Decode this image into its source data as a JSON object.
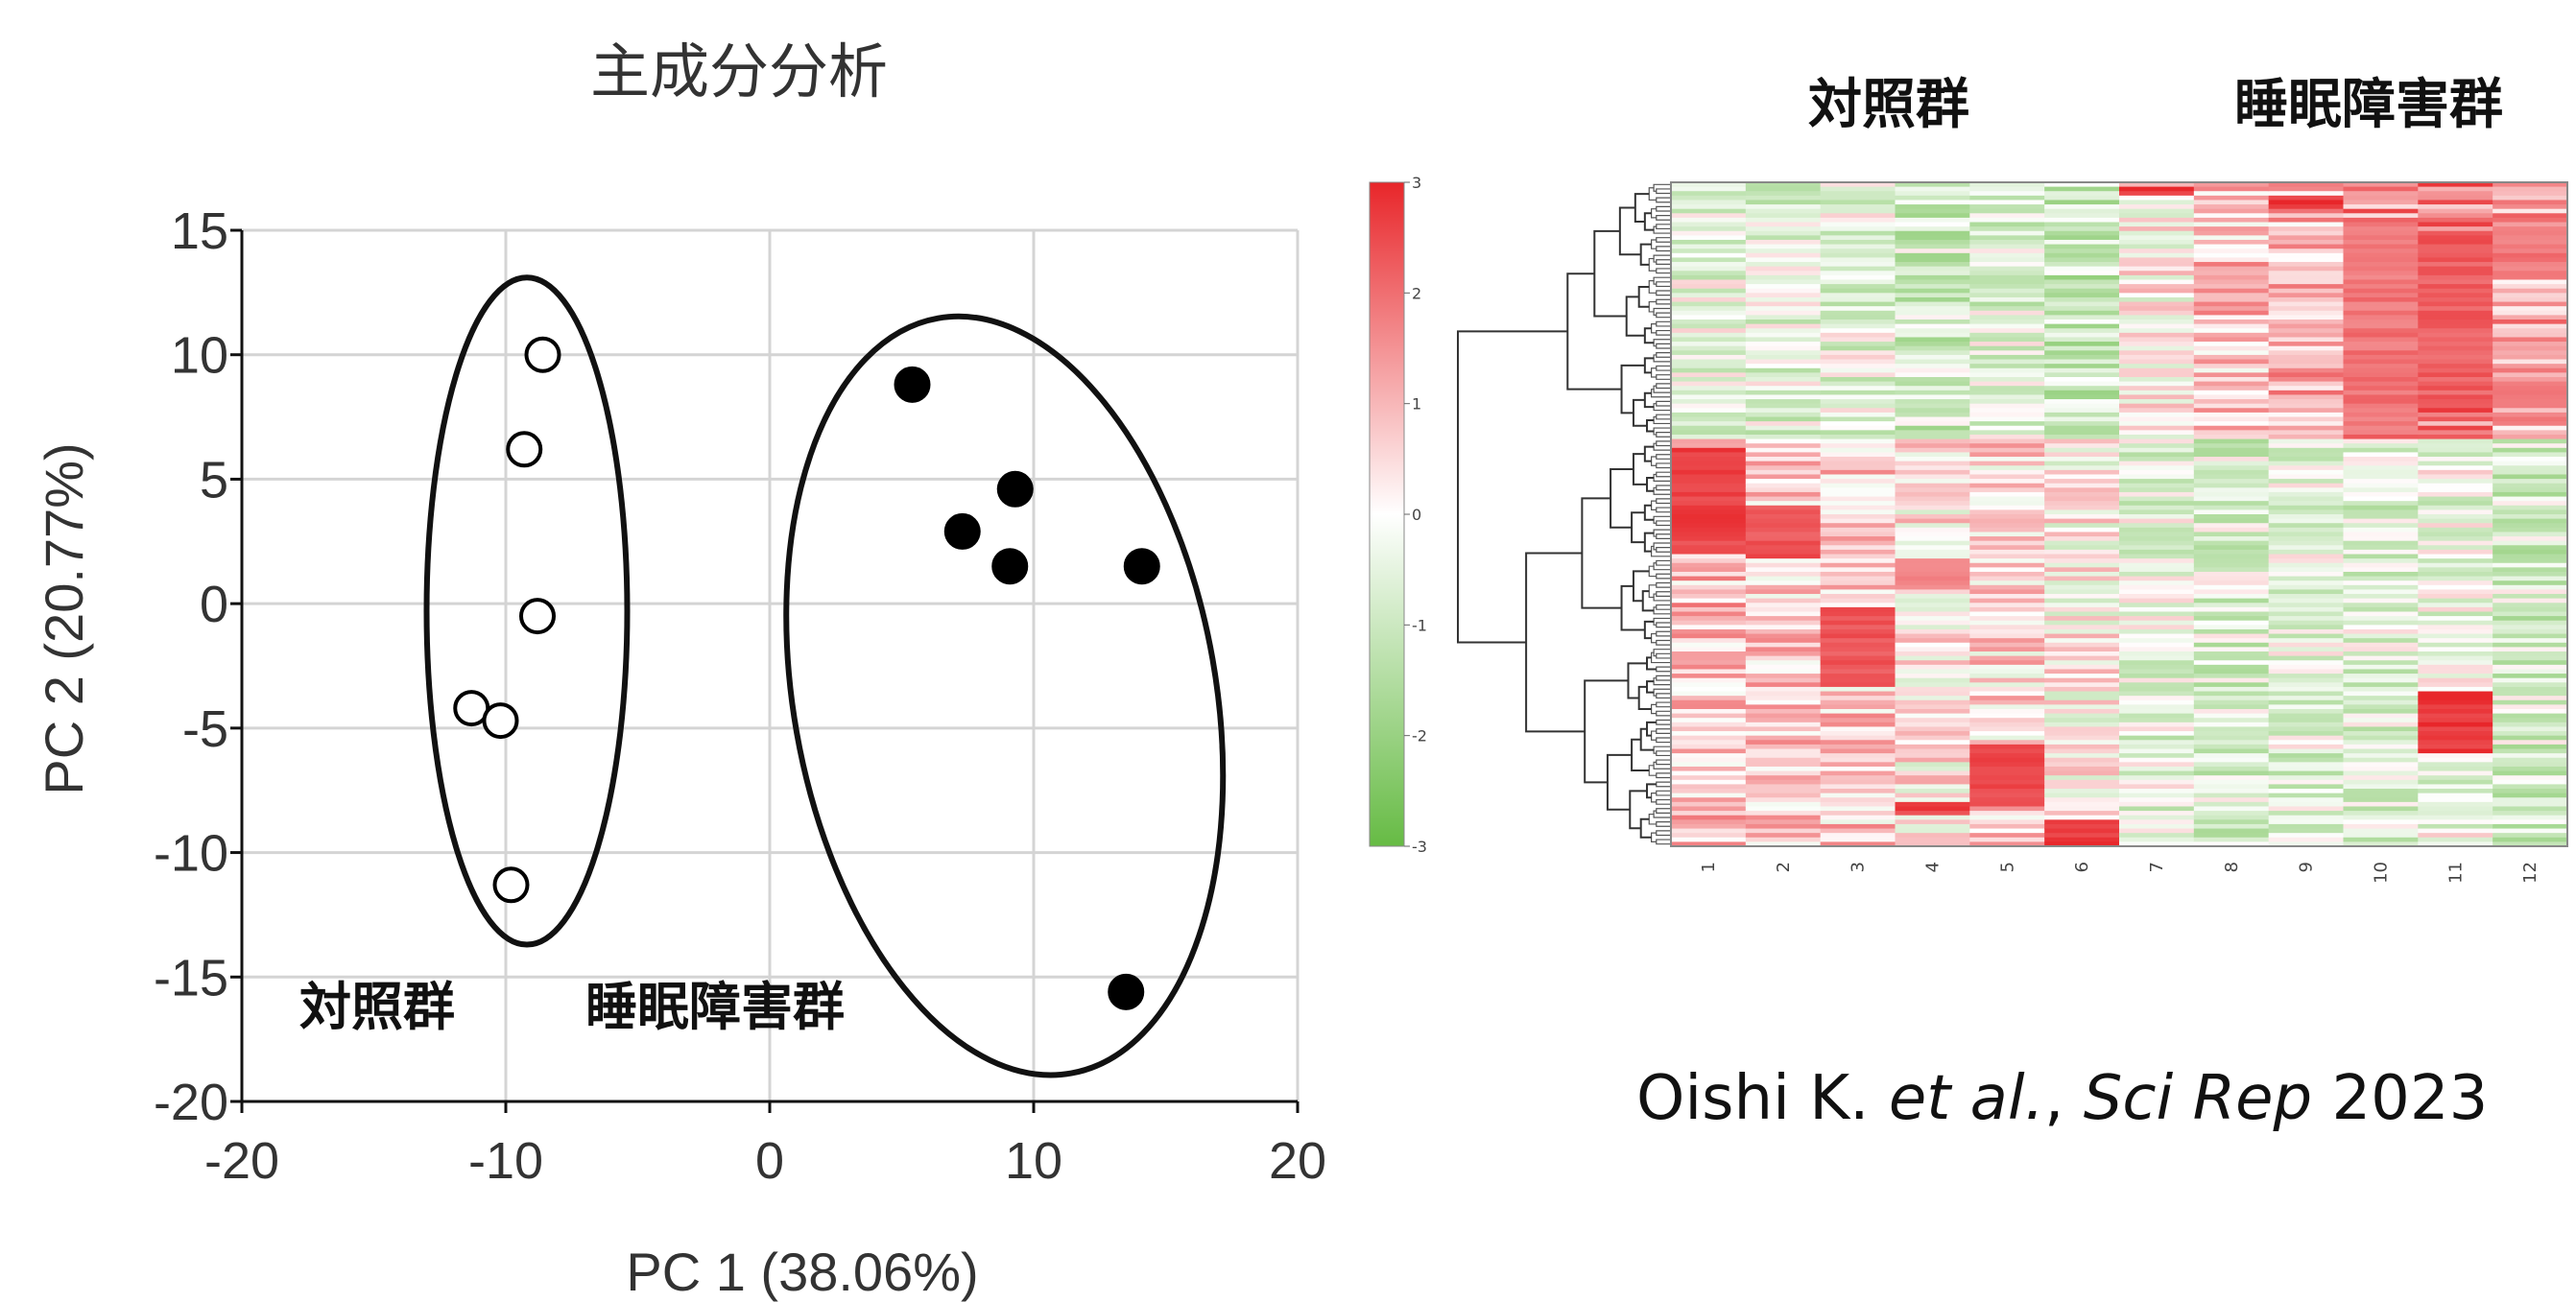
{
  "chart_data": [
    {
      "type": "scatter",
      "title": "主成分分析",
      "xlabel": "PC 1 (38.06%)",
      "ylabel": "PC 2 (20.77%)",
      "xlim": [
        -20,
        20
      ],
      "ylim": [
        -20,
        15
      ],
      "xticks": [
        -20,
        -10,
        0,
        10,
        20
      ],
      "yticks": [
        15,
        10,
        5,
        0,
        -5,
        -10,
        -15,
        -20
      ],
      "grid": true,
      "series": [
        {
          "name": "対照群",
          "marker": "open-circle",
          "points": [
            [
              -8.6,
              10.0
            ],
            [
              -9.3,
              6.2
            ],
            [
              -8.8,
              -0.5
            ],
            [
              -11.3,
              -4.2
            ],
            [
              -10.2,
              -4.7
            ],
            [
              -9.8,
              -11.3
            ]
          ]
        },
        {
          "name": "睡眠障害群",
          "marker": "filled-circle",
          "points": [
            [
              5.4,
              8.8
            ],
            [
              9.3,
              4.6
            ],
            [
              7.3,
              2.9
            ],
            [
              9.1,
              1.5
            ],
            [
              14.1,
              1.5
            ],
            [
              13.5,
              -15.6
            ]
          ]
        }
      ],
      "ellipses": [
        {
          "group": "対照群",
          "cx": -9.2,
          "cy": -0.3,
          "rx": 3.8,
          "ry": 13.4,
          "rotation_deg": 0
        },
        {
          "group": "睡眠障害群",
          "cx": 8.9,
          "cy": -3.7,
          "rx": 8.0,
          "ry": 15.4,
          "rotation_deg": -10
        }
      ]
    },
    {
      "type": "heatmap",
      "group_labels": [
        "対照群",
        "睡眠障害群"
      ],
      "columns": [
        "1",
        "2",
        "3",
        "4",
        "5",
        "6",
        "7",
        "8",
        "9",
        "10",
        "11",
        "12"
      ],
      "row_count": 150,
      "color_scale": {
        "min": -3,
        "max": 3,
        "ticks": [
          "3",
          "2",
          "1",
          "0",
          "-1",
          "-2",
          "-3"
        ],
        "low": "#66bb44",
        "mid": "#ffffff",
        "high": "#e8262a"
      },
      "row_clusters": [
        {
          "rows": [
            0,
            58
          ],
          "col_means": [
            -0.4,
            -0.5,
            -0.4,
            -0.8,
            -0.5,
            -1.0,
            0.1,
            0.8,
            1.0,
            1.5,
            1.7,
            1.2
          ]
        },
        {
          "rows": [
            58,
            150
          ],
          "col_means": [
            0.9,
            0.7,
            0.7,
            0.2,
            0.5,
            0.1,
            -0.4,
            -0.6,
            -0.5,
            -0.5,
            -0.3,
            -0.7
          ]
        }
      ],
      "hotspots": [
        {
          "col": 0,
          "rows": [
            60,
            84
          ],
          "value": 2.6
        },
        {
          "col": 1,
          "rows": [
            73,
            85
          ],
          "value": 2.4
        },
        {
          "col": 2,
          "rows": [
            96,
            114
          ],
          "value": 2.4
        },
        {
          "col": 3,
          "rows": [
            85,
            92
          ],
          "value": 1.8
        },
        {
          "col": 4,
          "rows": [
            127,
            141
          ],
          "value": 2.6
        },
        {
          "col": 5,
          "rows": [
            144,
            150
          ],
          "value": 2.8
        },
        {
          "col": 6,
          "rows": [
            1,
            3
          ],
          "value": 2.8
        },
        {
          "col": 8,
          "rows": [
            3,
            6
          ],
          "value": 2.8
        },
        {
          "col": 9,
          "rows": [
            9,
            54
          ],
          "value": 1.9
        },
        {
          "col": 10,
          "rows": [
            15,
            50
          ],
          "value": 2.2
        },
        {
          "col": 10,
          "rows": [
            115,
            129
          ],
          "value": 2.8
        },
        {
          "col": 11,
          "rows": [
            10,
            22
          ],
          "value": 1.9
        },
        {
          "col": 3,
          "rows": [
            140,
            143
          ],
          "value": 2.6
        }
      ]
    }
  ],
  "citation": {
    "authors": "Oishi K. ",
    "etal": "et al.",
    "sep": ", ",
    "journal": "Sci Rep",
    "year": " 2023"
  }
}
